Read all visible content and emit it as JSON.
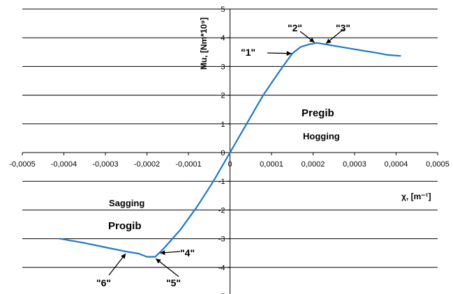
{
  "chart_data": {
    "type": "line",
    "title": "",
    "xlabel": "χ, [m⁻¹]",
    "ylabel": "Mu, [Nm*10⁹]",
    "xlim": [
      -0.0005,
      0.0005
    ],
    "ylim": [
      -5,
      5
    ],
    "grid": true,
    "color": "#1f78c8",
    "x_ticks": [
      "-0,0005",
      "-0,0004",
      "-0,0003",
      "-0,0002",
      "-0,0001",
      "0",
      "0,0001",
      "0,0002",
      "0,0003",
      "0,0004",
      "0,0005"
    ],
    "y_ticks": [
      "5",
      "4",
      "3",
      "2",
      "1",
      "0",
      "-1",
      "-2",
      "-3",
      "-4",
      "-5"
    ],
    "series": [
      {
        "x": [
          -0.00041,
          -0.00035,
          -0.0003,
          -0.00025,
          -0.00022,
          -0.0002,
          -0.00018,
          -0.00016,
          -0.00012,
          -8e-05,
          -4e-05,
          0,
          4e-05,
          8e-05,
          0.00012,
          0.00015,
          0.00017,
          0.00019,
          0.00021,
          0.00025,
          0.0003,
          0.00035,
          0.00038,
          0.00041
        ],
        "y": [
          -3.0,
          -3.15,
          -3.3,
          -3.45,
          -3.52,
          -3.63,
          -3.63,
          -3.35,
          -2.7,
          -1.9,
          -1.0,
          0,
          1.0,
          2.0,
          2.85,
          3.45,
          3.68,
          3.77,
          3.82,
          3.72,
          3.6,
          3.48,
          3.4,
          3.37
        ]
      }
    ],
    "annotations": [
      {
        "label": "\"1\"",
        "x": 0.00015,
        "y": 3.45
      },
      {
        "label": "\"2\"",
        "x": 0.000205,
        "y": 3.82
      },
      {
        "label": "\"3\"",
        "x": 0.00023,
        "y": 3.78
      },
      {
        "label": "\"4\"",
        "x": -0.00017,
        "y": -3.5
      },
      {
        "label": "\"5\"",
        "x": -0.00018,
        "y": -3.68
      },
      {
        "label": "\"6\"",
        "x": -0.00025,
        "y": -3.5
      }
    ],
    "region_labels": {
      "hogging_local": "Pregib",
      "hogging": "Hogging",
      "sagging": "Sagging",
      "sagging_local": "Progib"
    }
  }
}
